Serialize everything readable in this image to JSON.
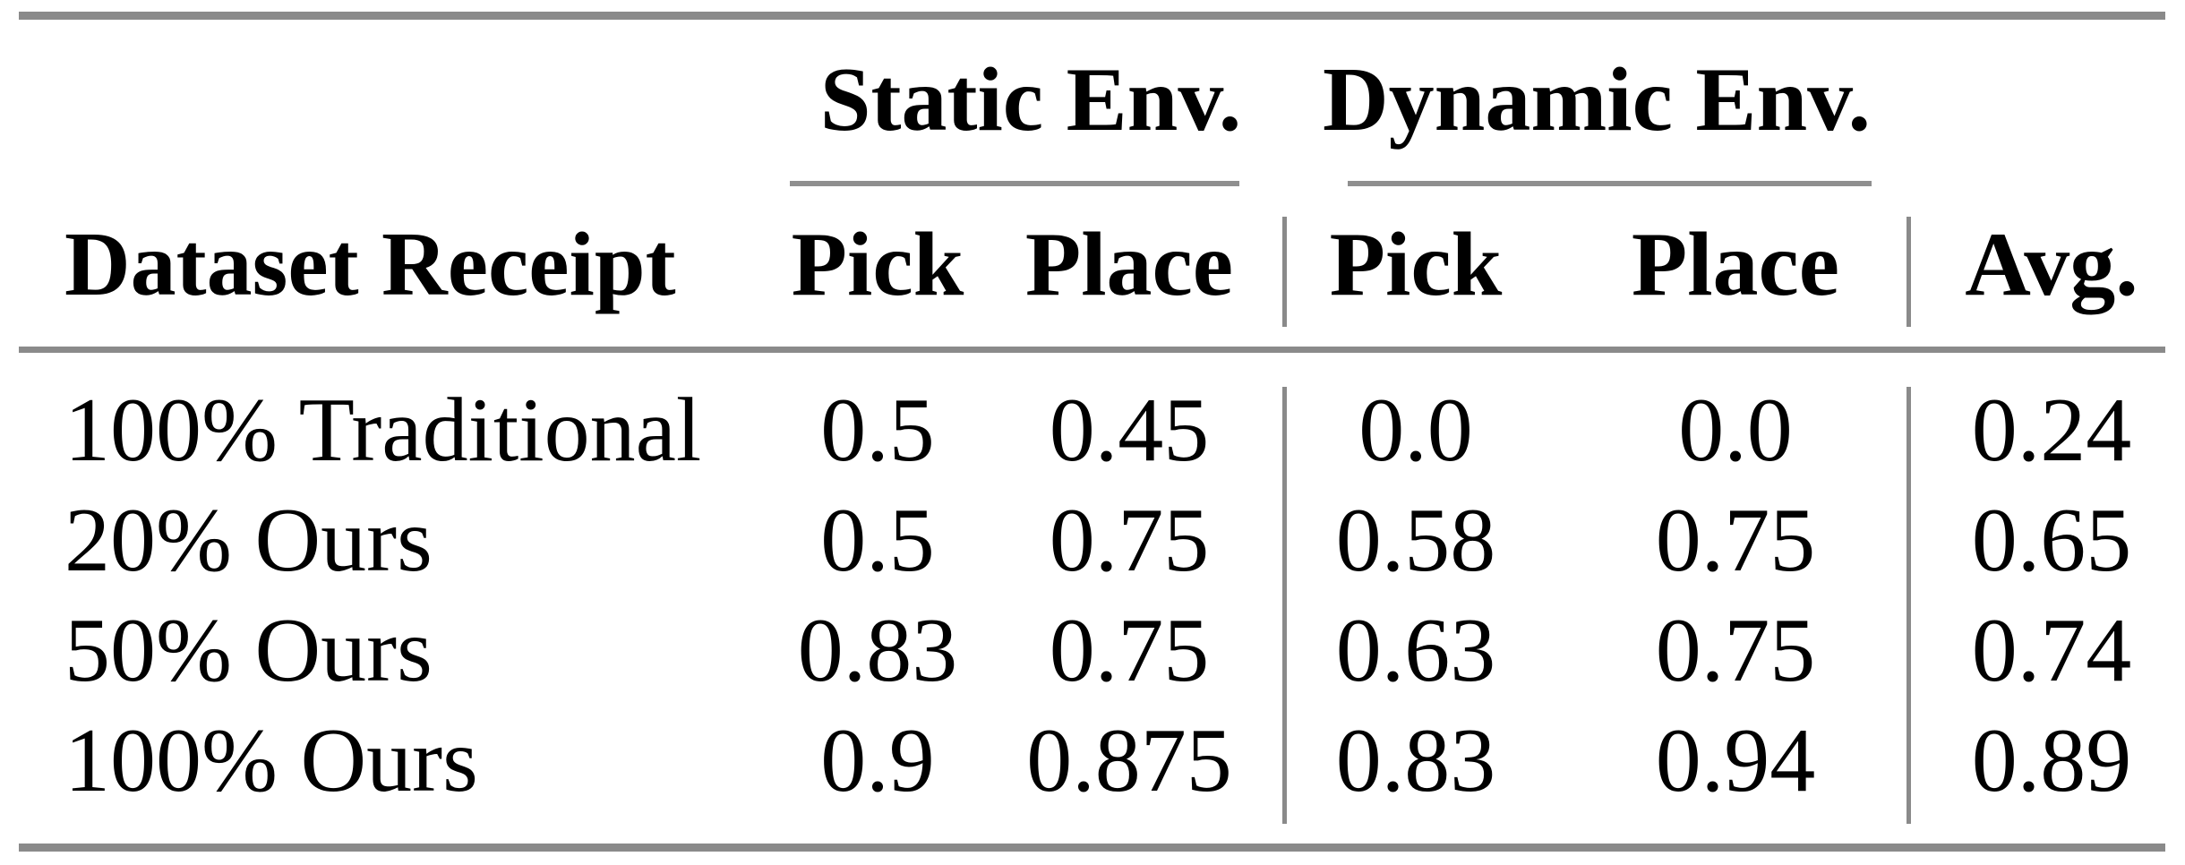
{
  "colors": {
    "rule_gray": "#8a8a8a",
    "text": "#000000",
    "background": "#ffffff"
  },
  "table": {
    "groups": [
      {
        "label": "Static Env."
      },
      {
        "label": "Dynamic Env."
      }
    ],
    "headers": {
      "dataset": "Dataset Receipt",
      "static_pick": "Pick",
      "static_place": "Place",
      "dynamic_pick": "Pick",
      "dynamic_place": "Place",
      "avg": "Avg."
    },
    "rows": [
      {
        "label": "100% Traditional",
        "static_pick": "0.5",
        "static_place": "0.45",
        "dynamic_pick": "0.0",
        "dynamic_place": "0.0",
        "avg": "0.24"
      },
      {
        "label": "20% Ours",
        "static_pick": "0.5",
        "static_place": "0.75",
        "dynamic_pick": "0.58",
        "dynamic_place": "0.75",
        "avg": "0.65"
      },
      {
        "label": "50% Ours",
        "static_pick": "0.83",
        "static_place": "0.75",
        "dynamic_pick": "0.63",
        "dynamic_place": "0.75",
        "avg": "0.74"
      },
      {
        "label": "100% Ours",
        "static_pick": "0.9",
        "static_place": "0.875",
        "dynamic_pick": "0.83",
        "dynamic_place": "0.94",
        "avg": "0.89"
      }
    ]
  },
  "chart_data": {
    "type": "table",
    "title": "",
    "columns": [
      "Dataset Receipt",
      "Static Env. Pick",
      "Static Env. Place",
      "Dynamic Env. Pick",
      "Dynamic Env. Place",
      "Avg."
    ],
    "rows": [
      [
        "100% Traditional",
        0.5,
        0.45,
        0.0,
        0.0,
        0.24
      ],
      [
        "20% Ours",
        0.5,
        0.75,
        0.58,
        0.75,
        0.65
      ],
      [
        "50% Ours",
        0.83,
        0.75,
        0.63,
        0.75,
        0.74
      ],
      [
        "100% Ours",
        0.9,
        0.875,
        0.83,
        0.94,
        0.89
      ]
    ]
  }
}
